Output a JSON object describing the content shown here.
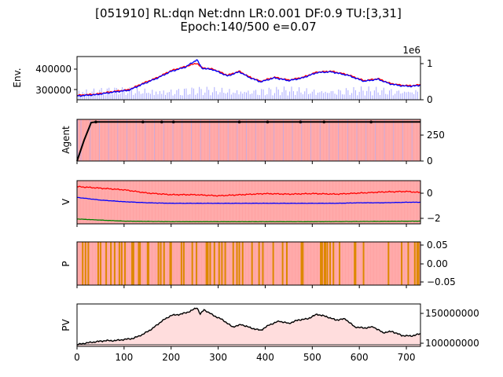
{
  "title_line1": "[051910] RL:dqn Net:dnn LR:0.001 DF:0.9 TU:[3,31]",
  "title_line2": "Epoch:140/500 e=0.07",
  "x_ticks": [
    "0",
    "100",
    "200",
    "300",
    "400",
    "500",
    "600",
    "700"
  ],
  "colors": {
    "red_line": "#ff0000",
    "blue_line": "#0000ff",
    "green_line": "#008000",
    "black_line": "#000000",
    "volume_bar": "#aaaaff",
    "pink_fill": "#ffaaaa",
    "light_pink_fill": "#ffdddd",
    "orange_bar": "#dd8800"
  },
  "chart_data": [
    {
      "type": "line",
      "ylabel": "Env.",
      "left_ticks": [
        "300000",
        "400000"
      ],
      "right_ticks": [
        "0",
        "1"
      ],
      "right_scale_label": "1e6",
      "xlim": [
        0,
        730
      ],
      "ylim": [
        240000,
        455000
      ],
      "right_ylim": [
        0,
        1.2
      ],
      "series": [
        {
          "color": "red",
          "x": [
            0,
            40,
            80,
            110,
            140,
            170,
            200,
            230,
            255,
            265,
            290,
            320,
            345,
            365,
            390,
            420,
            450,
            480,
            510,
            540,
            575,
            610,
            640,
            665,
            690,
            710,
            730
          ],
          "y": [
            262000,
            268000,
            282000,
            290000,
            322000,
            350000,
            385000,
            405000,
            422000,
            400000,
            392000,
            362000,
            382000,
            355000,
            332000,
            352000,
            338000,
            352000,
            378000,
            382000,
            365000,
            335000,
            345000,
            322000,
            312000,
            310000,
            315000
          ]
        },
        {
          "color": "blue",
          "x": [
            0,
            40,
            80,
            110,
            140,
            170,
            200,
            230,
            255,
            265,
            290,
            320,
            345,
            365,
            390,
            420,
            450,
            480,
            510,
            540,
            575,
            610,
            640,
            665,
            690,
            710,
            730
          ],
          "y": [
            259000,
            265000,
            279000,
            287000,
            318000,
            347000,
            381000,
            402000,
            440000,
            397000,
            389000,
            358000,
            379000,
            352000,
            329000,
            349000,
            335000,
            349000,
            375000,
            379000,
            362000,
            332000,
            342000,
            319000,
            309000,
            307000,
            312000
          ]
        }
      ],
      "volume_bars": "per-step volume on right axis, roughly 0.1–0.5 (1e6)"
    },
    {
      "type": "line",
      "ylabel": "Agent",
      "left_ticks": [],
      "right_ticks": [
        "0",
        "250"
      ],
      "xlim": [
        0,
        730
      ],
      "ylim": [
        0,
        400
      ],
      "series": [
        {
          "color": "black",
          "x": [
            0,
            15,
            30,
            40,
            730
          ],
          "y": [
            0,
            200,
            370,
            375,
            375
          ]
        }
      ],
      "markers_x": [
        40,
        140,
        180,
        205,
        345,
        405,
        475,
        525,
        625
      ]
    },
    {
      "type": "line",
      "ylabel": "V",
      "left_ticks": [],
      "right_ticks": [
        "0",
        "−2"
      ],
      "xlim": [
        0,
        730
      ],
      "ylim": [
        -2.5,
        1.5
      ],
      "series": [
        {
          "color": "red",
          "x": [
            0,
            50,
            100,
            150,
            200,
            250,
            300,
            350,
            400,
            450,
            500,
            550,
            600,
            650,
            700,
            730
          ],
          "y": [
            0.95,
            0.8,
            0.65,
            0.35,
            0.2,
            0.2,
            0.1,
            0.2,
            0.3,
            0.25,
            0.3,
            0.25,
            0.35,
            0.45,
            0.5,
            0.4
          ]
        },
        {
          "color": "blue",
          "x": [
            0,
            50,
            100,
            150,
            200,
            250,
            300,
            350,
            400,
            450,
            500,
            550,
            600,
            650,
            700,
            730
          ],
          "y": [
            -0.05,
            -0.3,
            -0.45,
            -0.55,
            -0.6,
            -0.6,
            -0.6,
            -0.6,
            -0.6,
            -0.6,
            -0.6,
            -0.6,
            -0.55,
            -0.55,
            -0.5,
            -0.5
          ]
        },
        {
          "color": "green",
          "x": [
            0,
            50,
            100,
            200,
            300,
            400,
            500,
            600,
            730
          ],
          "y": [
            -2.05,
            -2.15,
            -2.25,
            -2.3,
            -2.3,
            -2.3,
            -2.3,
            -2.28,
            -2.25
          ]
        }
      ]
    },
    {
      "type": "bar",
      "ylabel": "P",
      "left_ticks": [],
      "right_ticks": [
        "0.05",
        "0.00",
        "−0.05"
      ],
      "xlim": [
        0,
        730
      ],
      "ylim": [
        -0.06,
        0.06
      ],
      "orange_bar_x": [
        12,
        18,
        24,
        45,
        50,
        62,
        72,
        80,
        90,
        95,
        102,
        117,
        120,
        131,
        134,
        150,
        152,
        173,
        178,
        185,
        198,
        200,
        222,
        227,
        245,
        254,
        275,
        278,
        283,
        292,
        302,
        308,
        315,
        332,
        340,
        345,
        352,
        372,
        387,
        395,
        417,
        437,
        446,
        477,
        480,
        518,
        521,
        526,
        528,
        532,
        538,
        545,
        558,
        590,
        592,
        609,
        662,
        690,
        704,
        718,
        723,
        726
      ]
    },
    {
      "type": "area",
      "ylabel": "PV",
      "left_ticks": [],
      "right_ticks": [
        "100000000",
        "150000000"
      ],
      "xlim": [
        0,
        730
      ],
      "ylim": [
        94000000,
        168000000
      ],
      "series": [
        {
          "color": "black",
          "x": [
            0,
            20,
            40,
            60,
            80,
            100,
            120,
            140,
            160,
            180,
            200,
            220,
            240,
            255,
            262,
            270,
            290,
            310,
            330,
            350,
            370,
            390,
            410,
            430,
            450,
            470,
            490,
            510,
            530,
            550,
            570,
            590,
            610,
            630,
            650,
            670,
            690,
            710,
            730
          ],
          "y": [
            97000000,
            100000000,
            102000000,
            104000000,
            104000000,
            106000000,
            108000000,
            115000000,
            125000000,
            138000000,
            148000000,
            150000000,
            155000000,
            162000000,
            150000000,
            158000000,
            148000000,
            140000000,
            128000000,
            132000000,
            126000000,
            122000000,
            132000000,
            138000000,
            134000000,
            140000000,
            142000000,
            150000000,
            146000000,
            140000000,
            142000000,
            128000000,
            126000000,
            128000000,
            118000000,
            120000000,
            113000000,
            112000000,
            116000000
          ]
        }
      ]
    }
  ]
}
